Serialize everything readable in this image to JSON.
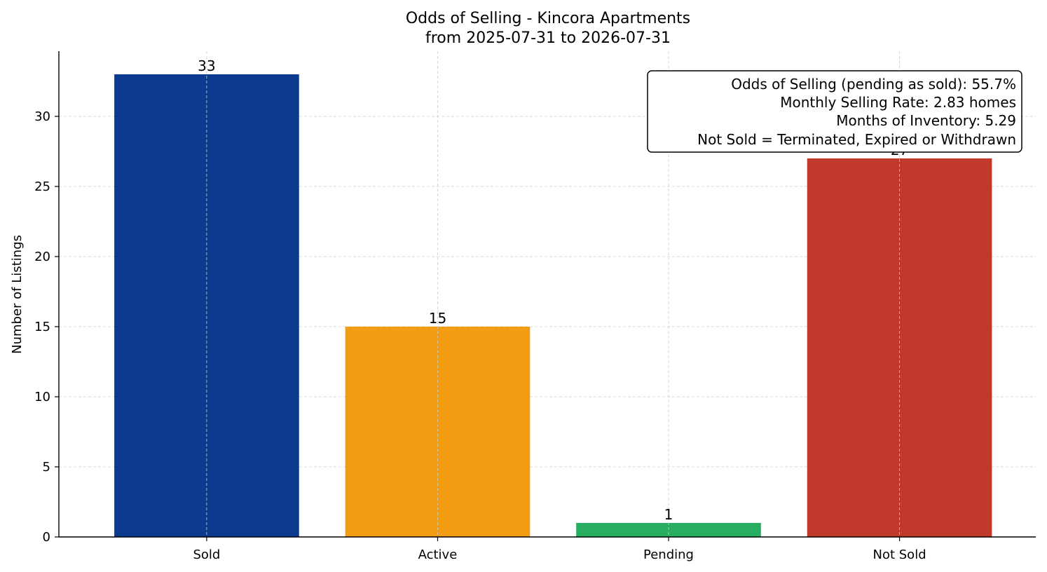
{
  "chart_data": {
    "type": "bar",
    "title": "Odds of Selling - Kincora Apartments",
    "subtitle": "from 2025-07-31 to 2026-07-31",
    "xlabel": "",
    "ylabel": "Number of Listings",
    "categories": [
      "Sold",
      "Active",
      "Pending",
      "Not Sold"
    ],
    "values": [
      33,
      15,
      1,
      27
    ],
    "data_labels": [
      "33",
      "15",
      "1",
      "27"
    ],
    "colors": [
      "#0b3a8f",
      "#f39c12",
      "#27ae60",
      "#c0392b"
    ],
    "ylim": [
      0,
      34.65
    ],
    "yticks": [
      0,
      5,
      10,
      15,
      20,
      25,
      30
    ],
    "ytick_labels": [
      "0",
      "5",
      "10",
      "15",
      "20",
      "25",
      "30"
    ],
    "grid": true,
    "annotation": {
      "placement": "top-right",
      "lines": [
        "Odds of Selling (pending as sold): 55.7%",
        "Monthly Selling Rate: 2.83 homes",
        "Months of Inventory: 5.29",
        "Not Sold = Terminated, Expired or Withdrawn"
      ]
    }
  }
}
